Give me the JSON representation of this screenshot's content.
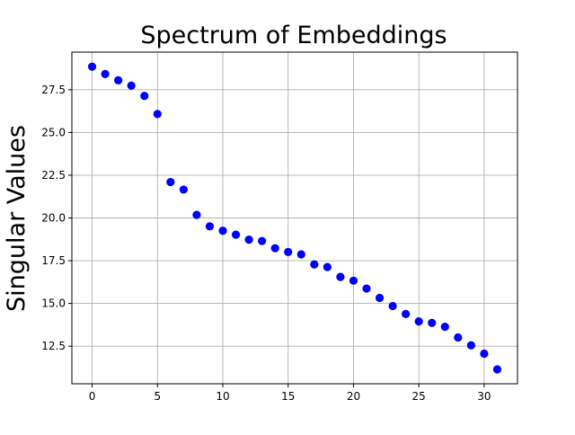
{
  "chart_data": {
    "type": "scatter",
    "title": "Spectrum of Embeddings",
    "xlabel": "",
    "ylabel": "Singular Values",
    "xlim": [
      -1.55,
      32.55
    ],
    "ylim": [
      10.3,
      29.7
    ],
    "x_ticks": [
      0,
      5,
      10,
      15,
      20,
      25,
      30
    ],
    "x_tick_labels": [
      "0",
      "5",
      "10",
      "15",
      "20",
      "25",
      "30"
    ],
    "y_ticks": [
      12.5,
      15.0,
      17.5,
      20.0,
      22.5,
      25.0,
      27.5
    ],
    "y_tick_labels": [
      "12.5",
      "15.0",
      "17.5",
      "20.0",
      "22.5",
      "25.0",
      "27.5"
    ],
    "grid": true,
    "marker_color": "#0000ff",
    "series": [
      {
        "x": [
          0,
          1,
          2,
          3,
          4,
          5,
          6,
          7,
          8,
          9,
          10,
          11,
          12,
          13,
          14,
          15,
          16,
          17,
          18,
          19,
          20,
          21,
          22,
          23,
          24,
          25,
          26,
          27,
          28,
          29,
          30,
          31
        ],
        "y": [
          28.85,
          28.42,
          28.05,
          27.74,
          27.14,
          26.08,
          22.1,
          21.66,
          20.18,
          19.51,
          19.25,
          19.02,
          18.73,
          18.65,
          18.23,
          18.01,
          17.87,
          17.28,
          17.13,
          16.55,
          16.33,
          15.87,
          15.32,
          14.85,
          14.38,
          13.95,
          13.86,
          13.63,
          13.01,
          12.55,
          12.06,
          11.14
        ]
      }
    ]
  }
}
